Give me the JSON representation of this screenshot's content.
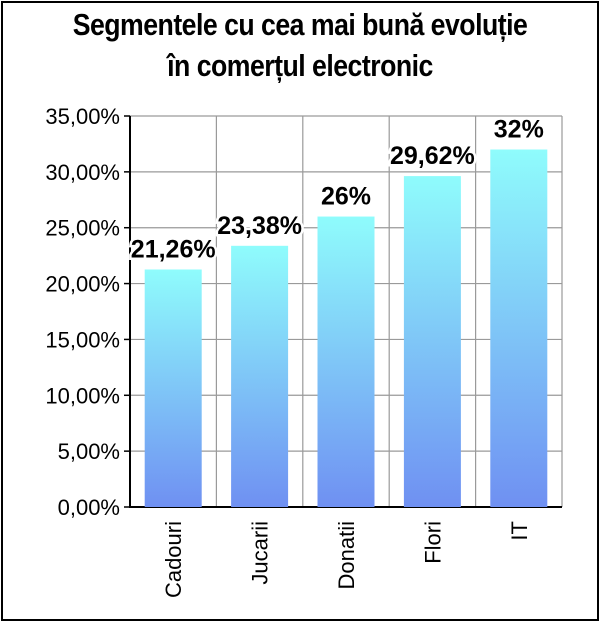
{
  "chart_data": {
    "type": "bar",
    "title_lines": [
      "Segmentele cu cea mai bună evoluție",
      "în comerțul electronic"
    ],
    "categories": [
      "Cadouri",
      "Jucarii",
      "Donatii",
      "Flori",
      "IT"
    ],
    "values": [
      21.26,
      23.38,
      26,
      29.62,
      32
    ],
    "data_labels": [
      "21,26%",
      "23,38%",
      "26%",
      "29,62%",
      "32%"
    ],
    "ylim": [
      0,
      35
    ],
    "yticks": [
      0,
      5,
      10,
      15,
      20,
      25,
      30,
      35
    ],
    "ytick_labels": [
      "0,00%",
      "5,00%",
      "10,00%",
      "15,00%",
      "20,00%",
      "25,00%",
      "30,00%",
      "35,00%"
    ],
    "grid": true,
    "bar_gradient": [
      "#8ffcfc",
      "#6f90f2"
    ]
  }
}
